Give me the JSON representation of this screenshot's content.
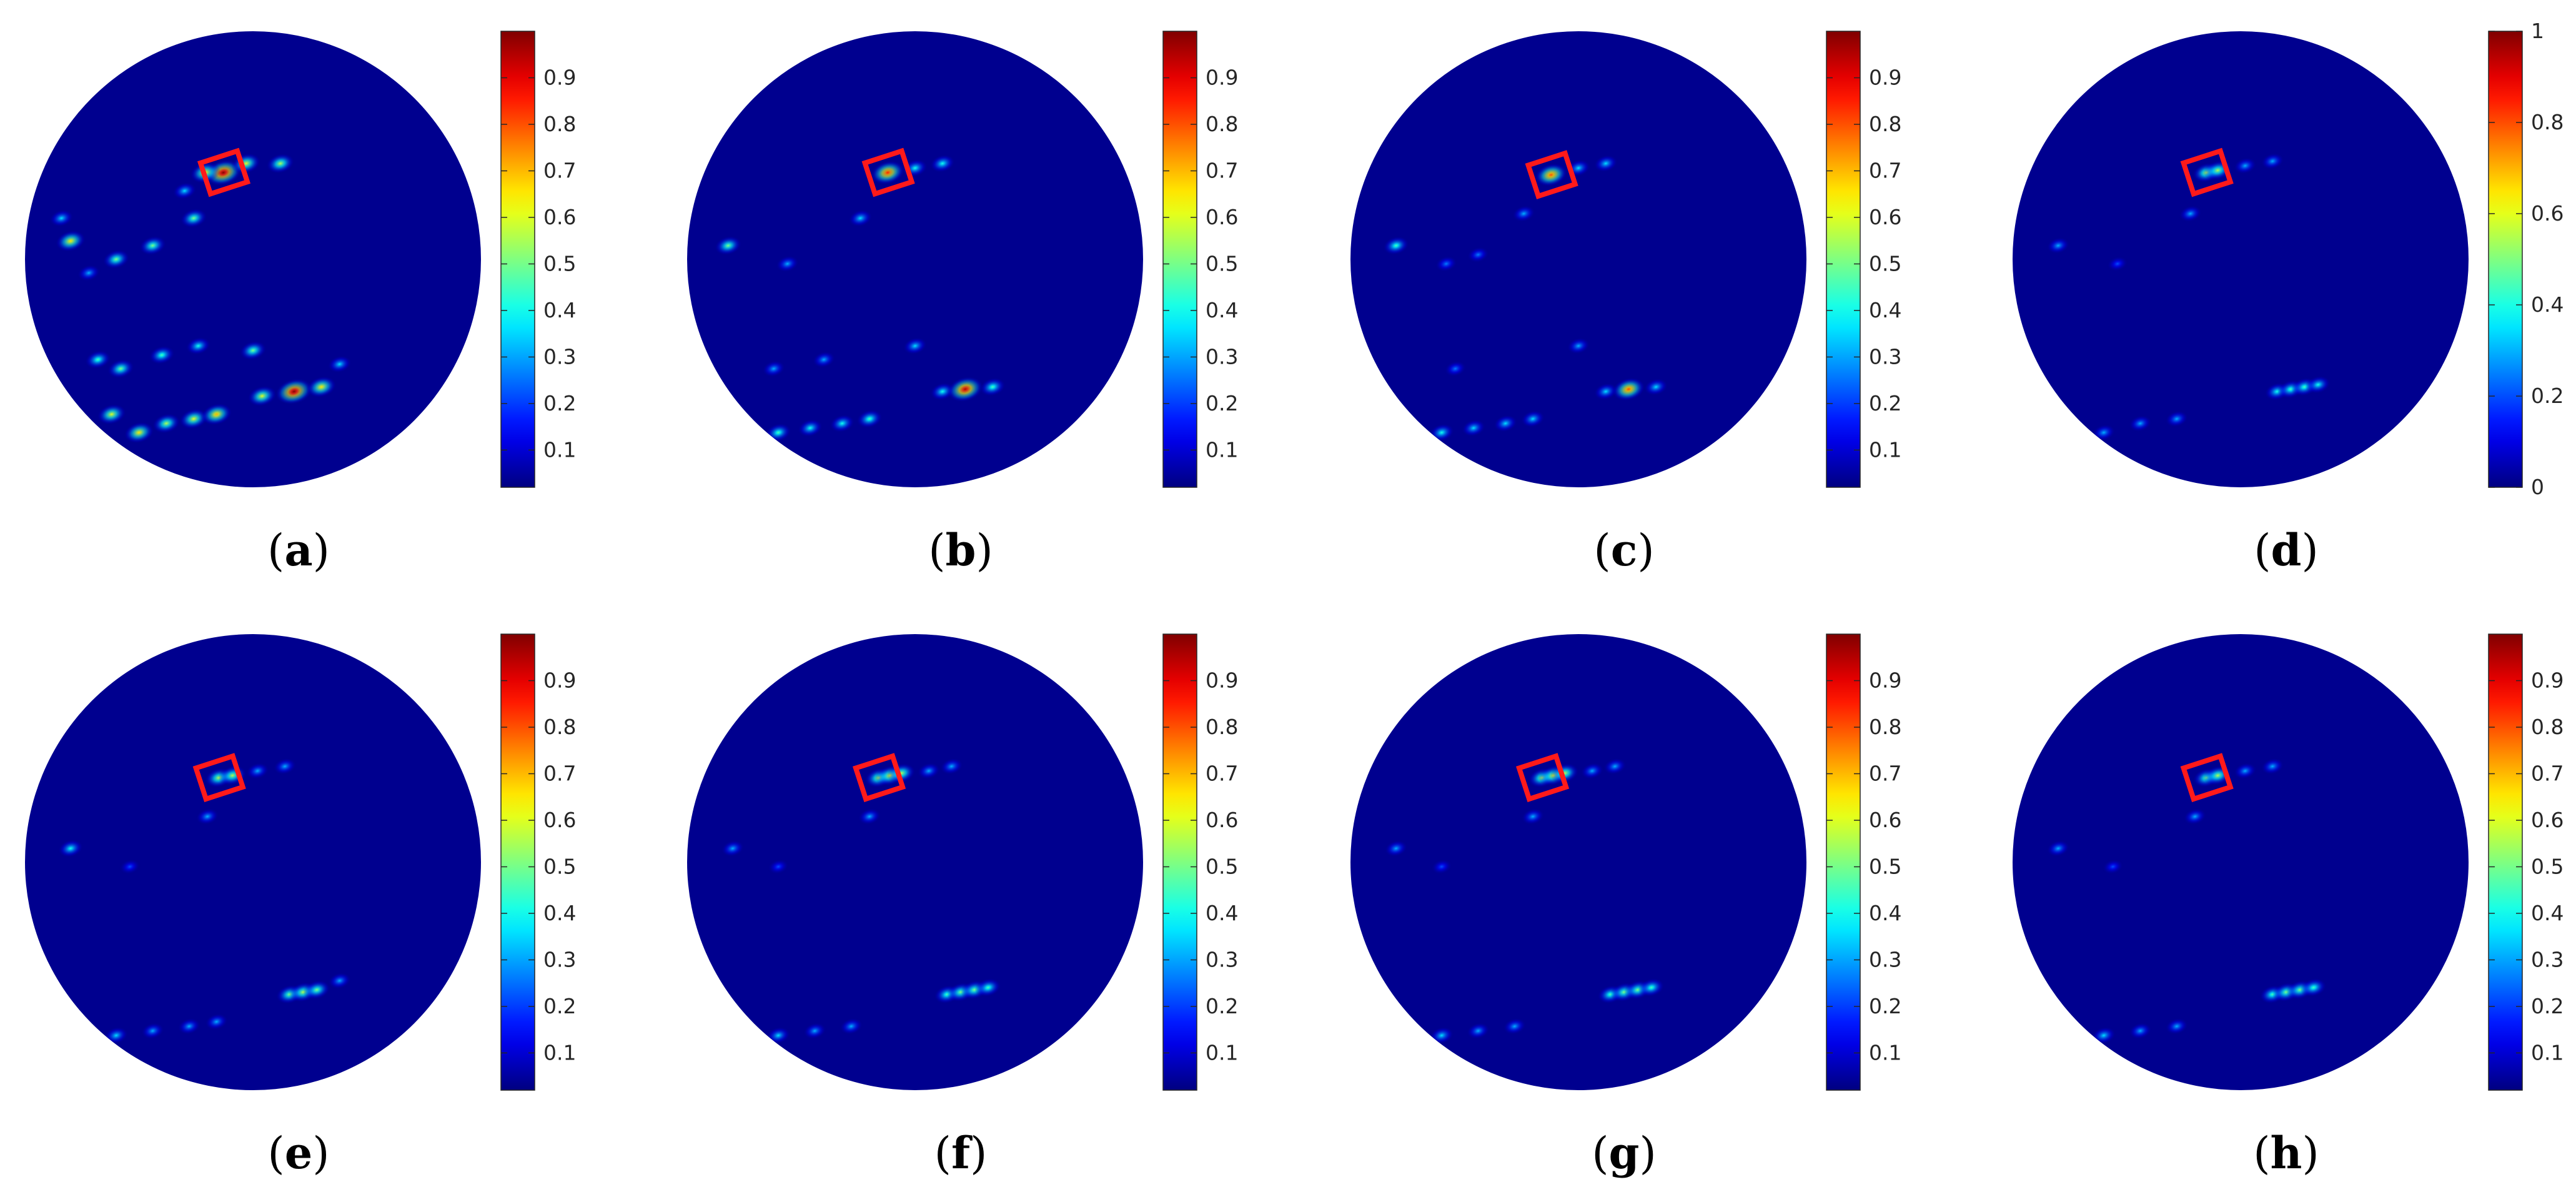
{
  "figure": {
    "colormap": "jet",
    "background_color": "#00008f",
    "marker_color": "#ff1a1a"
  },
  "chart_data": [
    {
      "type": "heatmap",
      "caption": "a",
      "colorbar": {
        "range": [
          0.02,
          1.0
        ],
        "ticks": [
          0.1,
          0.2,
          0.3,
          0.4,
          0.5,
          0.6,
          0.7,
          0.8,
          0.9
        ],
        "tick_labels": [
          "0.1",
          "0.2",
          "0.3",
          "0.4",
          "0.5",
          "0.6",
          "0.7",
          "0.8",
          "0.9"
        ]
      },
      "scatterers": [
        {
          "x": 0.435,
          "y": 0.31,
          "a": 1.0
        },
        {
          "x": 0.395,
          "y": 0.31,
          "a": 0.65
        },
        {
          "x": 0.485,
          "y": 0.29,
          "a": 0.6
        },
        {
          "x": 0.56,
          "y": 0.29,
          "a": 0.55
        },
        {
          "x": 0.37,
          "y": 0.41,
          "a": 0.5
        },
        {
          "x": 0.35,
          "y": 0.35,
          "a": 0.35
        },
        {
          "x": 0.1,
          "y": 0.46,
          "a": 0.65
        },
        {
          "x": 0.08,
          "y": 0.41,
          "a": 0.35
        },
        {
          "x": 0.2,
          "y": 0.5,
          "a": 0.5
        },
        {
          "x": 0.28,
          "y": 0.47,
          "a": 0.5
        },
        {
          "x": 0.14,
          "y": 0.53,
          "a": 0.3
        },
        {
          "x": 0.21,
          "y": 0.74,
          "a": 0.5
        },
        {
          "x": 0.3,
          "y": 0.71,
          "a": 0.45
        },
        {
          "x": 0.38,
          "y": 0.69,
          "a": 0.4
        },
        {
          "x": 0.19,
          "y": 0.84,
          "a": 0.6
        },
        {
          "x": 0.25,
          "y": 0.88,
          "a": 0.65
        },
        {
          "x": 0.31,
          "y": 0.86,
          "a": 0.55
        },
        {
          "x": 0.37,
          "y": 0.85,
          "a": 0.6
        },
        {
          "x": 0.42,
          "y": 0.84,
          "a": 0.7
        },
        {
          "x": 0.52,
          "y": 0.8,
          "a": 0.6
        },
        {
          "x": 0.59,
          "y": 0.79,
          "a": 1.0
        },
        {
          "x": 0.65,
          "y": 0.78,
          "a": 0.65
        },
        {
          "x": 0.5,
          "y": 0.7,
          "a": 0.5
        },
        {
          "x": 0.69,
          "y": 0.73,
          "a": 0.35
        },
        {
          "x": 0.16,
          "y": 0.72,
          "a": 0.45
        }
      ]
    },
    {
      "type": "heatmap",
      "caption": "b",
      "colorbar": {
        "range": [
          0.02,
          1.0
        ],
        "ticks": [
          0.1,
          0.2,
          0.3,
          0.4,
          0.5,
          0.6,
          0.7,
          0.8,
          0.9
        ],
        "tick_labels": [
          "0.1",
          "0.2",
          "0.3",
          "0.4",
          "0.5",
          "0.6",
          "0.7",
          "0.8",
          "0.9"
        ]
      },
      "scatterers": [
        {
          "x": 0.44,
          "y": 0.31,
          "a": 0.85
        },
        {
          "x": 0.5,
          "y": 0.3,
          "a": 0.4
        },
        {
          "x": 0.56,
          "y": 0.29,
          "a": 0.4
        },
        {
          "x": 0.38,
          "y": 0.41,
          "a": 0.35
        },
        {
          "x": 0.09,
          "y": 0.47,
          "a": 0.5
        },
        {
          "x": 0.22,
          "y": 0.51,
          "a": 0.3
        },
        {
          "x": 0.19,
          "y": 0.74,
          "a": 0.3
        },
        {
          "x": 0.3,
          "y": 0.72,
          "a": 0.3
        },
        {
          "x": 0.2,
          "y": 0.88,
          "a": 0.45
        },
        {
          "x": 0.27,
          "y": 0.87,
          "a": 0.4
        },
        {
          "x": 0.34,
          "y": 0.86,
          "a": 0.4
        },
        {
          "x": 0.4,
          "y": 0.85,
          "a": 0.45
        },
        {
          "x": 0.56,
          "y": 0.79,
          "a": 0.4
        },
        {
          "x": 0.61,
          "y": 0.785,
          "a": 0.95
        },
        {
          "x": 0.67,
          "y": 0.78,
          "a": 0.45
        },
        {
          "x": 0.5,
          "y": 0.69,
          "a": 0.35
        }
      ]
    },
    {
      "type": "heatmap",
      "caption": "c",
      "colorbar": {
        "range": [
          0.02,
          1.0
        ],
        "ticks": [
          0.1,
          0.2,
          0.3,
          0.4,
          0.5,
          0.6,
          0.7,
          0.8,
          0.9
        ],
        "tick_labels": [
          "0.1",
          "0.2",
          "0.3",
          "0.4",
          "0.5",
          "0.6",
          "0.7",
          "0.8",
          "0.9"
        ]
      },
      "scatterers": [
        {
          "x": 0.44,
          "y": 0.315,
          "a": 0.8
        },
        {
          "x": 0.5,
          "y": 0.3,
          "a": 0.35
        },
        {
          "x": 0.56,
          "y": 0.29,
          "a": 0.35
        },
        {
          "x": 0.38,
          "y": 0.4,
          "a": 0.3
        },
        {
          "x": 0.1,
          "y": 0.47,
          "a": 0.45
        },
        {
          "x": 0.21,
          "y": 0.51,
          "a": 0.25
        },
        {
          "x": 0.28,
          "y": 0.49,
          "a": 0.25
        },
        {
          "x": 0.2,
          "y": 0.88,
          "a": 0.4
        },
        {
          "x": 0.27,
          "y": 0.87,
          "a": 0.35
        },
        {
          "x": 0.34,
          "y": 0.86,
          "a": 0.35
        },
        {
          "x": 0.4,
          "y": 0.85,
          "a": 0.35
        },
        {
          "x": 0.56,
          "y": 0.79,
          "a": 0.35
        },
        {
          "x": 0.61,
          "y": 0.785,
          "a": 0.8
        },
        {
          "x": 0.67,
          "y": 0.78,
          "a": 0.35
        },
        {
          "x": 0.5,
          "y": 0.69,
          "a": 0.3
        },
        {
          "x": 0.23,
          "y": 0.74,
          "a": 0.25
        }
      ]
    },
    {
      "type": "heatmap",
      "caption": "d",
      "colorbar": {
        "range": [
          0.0,
          1.0
        ],
        "ticks": [
          0,
          0.2,
          0.4,
          0.6,
          0.8,
          1
        ],
        "tick_labels": [
          "0",
          "0.2",
          "0.4",
          "0.6",
          "0.8",
          "1"
        ]
      },
      "scatterers": [
        {
          "x": 0.425,
          "y": 0.31,
          "a": 0.55
        },
        {
          "x": 0.45,
          "y": 0.305,
          "a": 0.55
        },
        {
          "x": 0.51,
          "y": 0.295,
          "a": 0.3
        },
        {
          "x": 0.57,
          "y": 0.285,
          "a": 0.3
        },
        {
          "x": 0.39,
          "y": 0.4,
          "a": 0.3
        },
        {
          "x": 0.1,
          "y": 0.47,
          "a": 0.3
        },
        {
          "x": 0.23,
          "y": 0.51,
          "a": 0.2
        },
        {
          "x": 0.2,
          "y": 0.88,
          "a": 0.3
        },
        {
          "x": 0.28,
          "y": 0.86,
          "a": 0.3
        },
        {
          "x": 0.36,
          "y": 0.85,
          "a": 0.3
        },
        {
          "x": 0.58,
          "y": 0.79,
          "a": 0.4
        },
        {
          "x": 0.61,
          "y": 0.785,
          "a": 0.45
        },
        {
          "x": 0.64,
          "y": 0.78,
          "a": 0.45
        },
        {
          "x": 0.67,
          "y": 0.775,
          "a": 0.4
        }
      ]
    },
    {
      "type": "heatmap",
      "caption": "e",
      "colorbar": {
        "range": [
          0.02,
          1.0
        ],
        "ticks": [
          0.1,
          0.2,
          0.3,
          0.4,
          0.5,
          0.6,
          0.7,
          0.8,
          0.9
        ],
        "tick_labels": [
          "0.1",
          "0.2",
          "0.3",
          "0.4",
          "0.5",
          "0.6",
          "0.7",
          "0.8",
          "0.9"
        ]
      },
      "scatterers": [
        {
          "x": 0.425,
          "y": 0.315,
          "a": 0.55
        },
        {
          "x": 0.455,
          "y": 0.31,
          "a": 0.55
        },
        {
          "x": 0.51,
          "y": 0.3,
          "a": 0.3
        },
        {
          "x": 0.57,
          "y": 0.29,
          "a": 0.3
        },
        {
          "x": 0.4,
          "y": 0.4,
          "a": 0.3
        },
        {
          "x": 0.1,
          "y": 0.47,
          "a": 0.4
        },
        {
          "x": 0.23,
          "y": 0.51,
          "a": 0.2
        },
        {
          "x": 0.2,
          "y": 0.88,
          "a": 0.35
        },
        {
          "x": 0.28,
          "y": 0.87,
          "a": 0.3
        },
        {
          "x": 0.36,
          "y": 0.86,
          "a": 0.3
        },
        {
          "x": 0.42,
          "y": 0.85,
          "a": 0.3
        },
        {
          "x": 0.58,
          "y": 0.79,
          "a": 0.5
        },
        {
          "x": 0.61,
          "y": 0.785,
          "a": 0.55
        },
        {
          "x": 0.64,
          "y": 0.78,
          "a": 0.5
        },
        {
          "x": 0.69,
          "y": 0.76,
          "a": 0.3
        }
      ]
    },
    {
      "type": "heatmap",
      "caption": "f",
      "colorbar": {
        "range": [
          0.02,
          1.0
        ],
        "ticks": [
          0.1,
          0.2,
          0.3,
          0.4,
          0.5,
          0.6,
          0.7,
          0.8,
          0.9
        ],
        "tick_labels": [
          "0.1",
          "0.2",
          "0.3",
          "0.4",
          "0.5",
          "0.6",
          "0.7",
          "0.8",
          "0.9"
        ]
      },
      "scatterers": [
        {
          "x": 0.42,
          "y": 0.315,
          "a": 0.55
        },
        {
          "x": 0.445,
          "y": 0.31,
          "a": 0.6
        },
        {
          "x": 0.47,
          "y": 0.305,
          "a": 0.55
        },
        {
          "x": 0.53,
          "y": 0.3,
          "a": 0.3
        },
        {
          "x": 0.58,
          "y": 0.29,
          "a": 0.3
        },
        {
          "x": 0.4,
          "y": 0.4,
          "a": 0.3
        },
        {
          "x": 0.1,
          "y": 0.47,
          "a": 0.3
        },
        {
          "x": 0.2,
          "y": 0.51,
          "a": 0.2
        },
        {
          "x": 0.2,
          "y": 0.88,
          "a": 0.35
        },
        {
          "x": 0.28,
          "y": 0.87,
          "a": 0.3
        },
        {
          "x": 0.36,
          "y": 0.86,
          "a": 0.3
        },
        {
          "x": 0.57,
          "y": 0.79,
          "a": 0.45
        },
        {
          "x": 0.6,
          "y": 0.785,
          "a": 0.5
        },
        {
          "x": 0.63,
          "y": 0.78,
          "a": 0.5
        },
        {
          "x": 0.66,
          "y": 0.775,
          "a": 0.45
        }
      ]
    },
    {
      "type": "heatmap",
      "caption": "g",
      "colorbar": {
        "range": [
          0.02,
          1.0
        ],
        "ticks": [
          0.1,
          0.2,
          0.3,
          0.4,
          0.5,
          0.6,
          0.7,
          0.8,
          0.9
        ],
        "tick_labels": [
          "0.1",
          "0.2",
          "0.3",
          "0.4",
          "0.5",
          "0.6",
          "0.7",
          "0.8",
          "0.9"
        ]
      },
      "scatterers": [
        {
          "x": 0.42,
          "y": 0.315,
          "a": 0.55
        },
        {
          "x": 0.445,
          "y": 0.31,
          "a": 0.6
        },
        {
          "x": 0.47,
          "y": 0.305,
          "a": 0.55
        },
        {
          "x": 0.53,
          "y": 0.3,
          "a": 0.3
        },
        {
          "x": 0.58,
          "y": 0.29,
          "a": 0.3
        },
        {
          "x": 0.4,
          "y": 0.4,
          "a": 0.3
        },
        {
          "x": 0.1,
          "y": 0.47,
          "a": 0.3
        },
        {
          "x": 0.2,
          "y": 0.51,
          "a": 0.2
        },
        {
          "x": 0.2,
          "y": 0.88,
          "a": 0.35
        },
        {
          "x": 0.28,
          "y": 0.87,
          "a": 0.3
        },
        {
          "x": 0.36,
          "y": 0.86,
          "a": 0.3
        },
        {
          "x": 0.57,
          "y": 0.79,
          "a": 0.45
        },
        {
          "x": 0.6,
          "y": 0.785,
          "a": 0.5
        },
        {
          "x": 0.63,
          "y": 0.78,
          "a": 0.5
        },
        {
          "x": 0.66,
          "y": 0.775,
          "a": 0.45
        }
      ]
    },
    {
      "type": "heatmap",
      "caption": "h",
      "colorbar": {
        "range": [
          0.02,
          1.0
        ],
        "ticks": [
          0.1,
          0.2,
          0.3,
          0.4,
          0.5,
          0.6,
          0.7,
          0.8,
          0.9
        ],
        "tick_labels": [
          "0.1",
          "0.2",
          "0.3",
          "0.4",
          "0.5",
          "0.6",
          "0.7",
          "0.8",
          "0.9"
        ]
      },
      "scatterers": [
        {
          "x": 0.425,
          "y": 0.315,
          "a": 0.5
        },
        {
          "x": 0.45,
          "y": 0.31,
          "a": 0.55
        },
        {
          "x": 0.51,
          "y": 0.3,
          "a": 0.3
        },
        {
          "x": 0.57,
          "y": 0.29,
          "a": 0.3
        },
        {
          "x": 0.4,
          "y": 0.4,
          "a": 0.3
        },
        {
          "x": 0.1,
          "y": 0.47,
          "a": 0.3
        },
        {
          "x": 0.22,
          "y": 0.51,
          "a": 0.2
        },
        {
          "x": 0.2,
          "y": 0.88,
          "a": 0.35
        },
        {
          "x": 0.28,
          "y": 0.87,
          "a": 0.3
        },
        {
          "x": 0.36,
          "y": 0.86,
          "a": 0.3
        },
        {
          "x": 0.57,
          "y": 0.79,
          "a": 0.45
        },
        {
          "x": 0.6,
          "y": 0.785,
          "a": 0.5
        },
        {
          "x": 0.63,
          "y": 0.78,
          "a": 0.5
        },
        {
          "x": 0.66,
          "y": 0.775,
          "a": 0.45
        }
      ]
    }
  ]
}
